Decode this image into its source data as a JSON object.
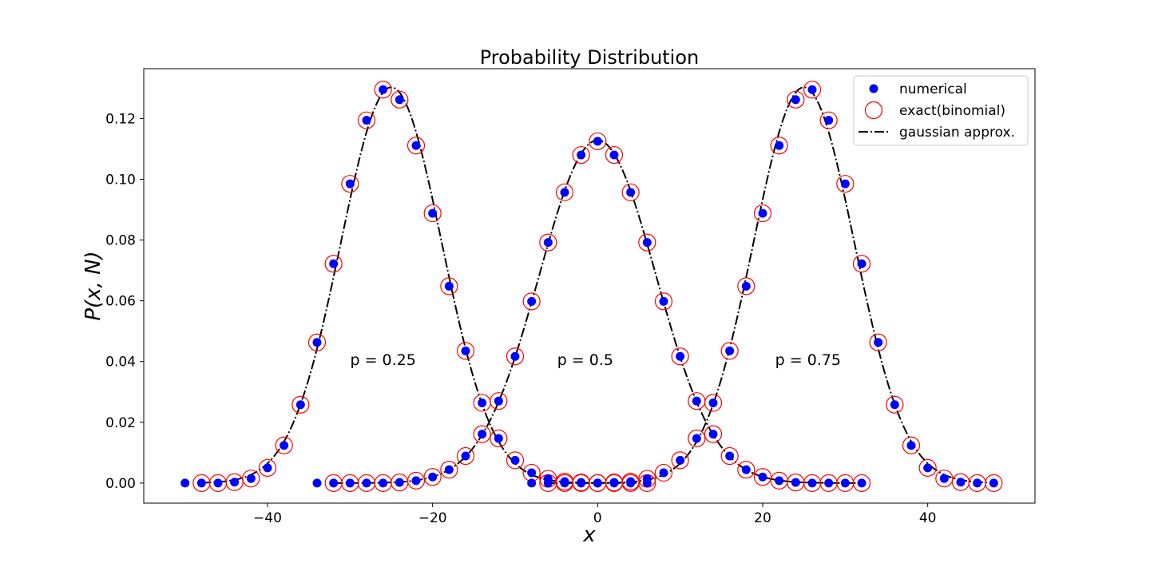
{
  "chart_data": {
    "type": "scatter",
    "title": "Probability Distribution",
    "xlabel": "x",
    "ylabel": "P(x, N)",
    "xlim": [
      -55.0,
      53.0
    ],
    "ylim": [
      -0.0066,
      0.1364
    ],
    "xticks": [
      -40,
      -20,
      0,
      20,
      40
    ],
    "xtick_labels": [
      "−40",
      "−20",
      "0",
      "20",
      "40"
    ],
    "yticks": [
      0.0,
      0.02,
      0.04,
      0.06,
      0.08,
      0.1,
      0.12
    ],
    "ytick_labels": [
      "0.00",
      "0.02",
      "0.04",
      "0.06",
      "0.08",
      "0.10",
      "0.12"
    ],
    "grid": false,
    "legend_position": "top-right",
    "legend": [
      {
        "label": "numerical",
        "marker": "filled-circle",
        "color": "#0000ff"
      },
      {
        "label": "exact(binomial)",
        "marker": "open-circle",
        "color": "#ff0000"
      },
      {
        "label": "gaussian approx.",
        "marker": "dash-dot-line",
        "color": "#000000"
      }
    ],
    "annotations": [
      {
        "text": "p = 0.25",
        "x": -26,
        "y": 0.041
      },
      {
        "text": "p = 0.5",
        "x": -1.5,
        "y": 0.041
      },
      {
        "text": "p = 0.75",
        "x": 25.5,
        "y": 0.041
      }
    ],
    "series": [
      {
        "annotation": "p = 0.25",
        "numerical": {
          "x": [
            -50,
            -48,
            -46,
            -44,
            -42,
            -40,
            -38,
            -36,
            -34,
            -32,
            -30,
            -28,
            -26,
            -24,
            -22,
            -20,
            -18,
            -16,
            -14,
            -12,
            -10,
            -8,
            -6,
            -4,
            -2,
            0,
            2,
            4,
            6
          ],
          "y": [
            0.0,
            0.0,
            0.0,
            0.0003,
            0.0015,
            0.005,
            0.0124,
            0.0258,
            0.0463,
            0.0722,
            0.0985,
            0.1194,
            0.1295,
            0.1262,
            0.1111,
            0.0888,
            0.0648,
            0.0435,
            0.0264,
            0.0147,
            0.0075,
            0.0034,
            0.0014,
            0.0005,
            0.0002,
            0.0,
            0.0,
            0.0,
            0.0
          ]
        },
        "exact": {
          "x": [
            -48,
            -46,
            -44,
            -42,
            -40,
            -38,
            -36,
            -34,
            -32,
            -30,
            -28,
            -26,
            -24,
            -22,
            -20,
            -18,
            -16,
            -14,
            -12,
            -10,
            -8,
            -6,
            -4,
            -2,
            0,
            2,
            4,
            6
          ],
          "y": [
            0.0,
            0.0,
            0.0003,
            0.0015,
            0.005,
            0.0124,
            0.0258,
            0.0463,
            0.0722,
            0.0985,
            0.1194,
            0.1295,
            0.1262,
            0.1111,
            0.0888,
            0.0648,
            0.0435,
            0.0264,
            0.0147,
            0.0075,
            0.0034,
            0.0014,
            0.0005,
            0.0002,
            0.0,
            0.0,
            0.0,
            0.0
          ]
        }
      },
      {
        "annotation": "p = 0.5",
        "numerical": {
          "x": [
            -34,
            -32,
            -30,
            -28,
            -26,
            -24,
            -22,
            -20,
            -18,
            -16,
            -14,
            -12,
            -10,
            -8,
            -6,
            -4,
            -2,
            0,
            2,
            4,
            6,
            8,
            10,
            12,
            14,
            16,
            18,
            20,
            22,
            24,
            26,
            28,
            30,
            32
          ],
          "y": [
            0.0,
            0.0,
            0.0,
            0.0,
            0.0,
            0.0002,
            0.0008,
            0.002,
            0.0044,
            0.0089,
            0.0161,
            0.027,
            0.0417,
            0.0598,
            0.0792,
            0.0957,
            0.108,
            0.1125,
            0.108,
            0.0957,
            0.0792,
            0.0598,
            0.0417,
            0.027,
            0.0161,
            0.0089,
            0.0044,
            0.002,
            0.0008,
            0.0002,
            0.0,
            0.0,
            0.0,
            0.0
          ]
        },
        "exact": {
          "x": [
            -32,
            -30,
            -28,
            -26,
            -24,
            -22,
            -20,
            -18,
            -16,
            -14,
            -12,
            -10,
            -8,
            -6,
            -4,
            -2,
            0,
            2,
            4,
            6,
            8,
            10,
            12,
            14,
            16,
            18,
            20,
            22,
            24,
            26,
            28,
            30,
            32
          ],
          "y": [
            0.0,
            0.0,
            0.0,
            0.0,
            0.0002,
            0.0008,
            0.002,
            0.0044,
            0.0089,
            0.0161,
            0.027,
            0.0417,
            0.0598,
            0.0792,
            0.0957,
            0.108,
            0.1125,
            0.108,
            0.0957,
            0.0792,
            0.0598,
            0.0417,
            0.027,
            0.0161,
            0.0089,
            0.0044,
            0.002,
            0.0008,
            0.0002,
            0.0,
            0.0,
            0.0,
            0.0
          ]
        }
      },
      {
        "annotation": "p = 0.75",
        "numerical": {
          "x": [
            -8,
            -6,
            -4,
            -2,
            0,
            2,
            4,
            6,
            8,
            10,
            12,
            14,
            16,
            18,
            20,
            22,
            24,
            26,
            28,
            30,
            32,
            34,
            36,
            38,
            40,
            42,
            44,
            46,
            48
          ],
          "y": [
            0.0,
            0.0,
            0.0,
            0.0,
            0.0,
            0.0002,
            0.0005,
            0.0014,
            0.0034,
            0.0075,
            0.0147,
            0.0264,
            0.0435,
            0.0648,
            0.0888,
            0.1111,
            0.1262,
            0.1295,
            0.1194,
            0.0985,
            0.0722,
            0.0463,
            0.0258,
            0.0124,
            0.005,
            0.0015,
            0.0003,
            0.0,
            0.0
          ]
        },
        "exact": {
          "x": [
            -6,
            -4,
            -2,
            0,
            2,
            4,
            6,
            8,
            10,
            12,
            14,
            16,
            18,
            20,
            22,
            24,
            26,
            28,
            30,
            32,
            34,
            36,
            38,
            40,
            42,
            44,
            46,
            48
          ],
          "y": [
            0.0,
            0.0,
            0.0,
            0.0,
            0.0002,
            0.0005,
            0.0014,
            0.0034,
            0.0075,
            0.0147,
            0.0264,
            0.0435,
            0.0648,
            0.0888,
            0.1111,
            0.1262,
            0.1295,
            0.1194,
            0.0985,
            0.0722,
            0.0463,
            0.0258,
            0.0124,
            0.005,
            0.0015,
            0.0003,
            0.0,
            0.0
          ]
        },
        "gaussian_mean_and_std_note": ""
      }
    ],
    "gaussian": [
      {
        "mean": -25,
        "std": 6.124,
        "x_range": [
          -48,
          6
        ]
      },
      {
        "mean": 0,
        "std": 7.071,
        "x_range": [
          -32,
          32
        ]
      },
      {
        "mean": 25,
        "std": 6.124,
        "x_range": [
          -6,
          48
        ]
      }
    ],
    "colors": {
      "numerical": "#0000ff",
      "exact": "#ff0000",
      "gaussian": "#000000"
    }
  }
}
